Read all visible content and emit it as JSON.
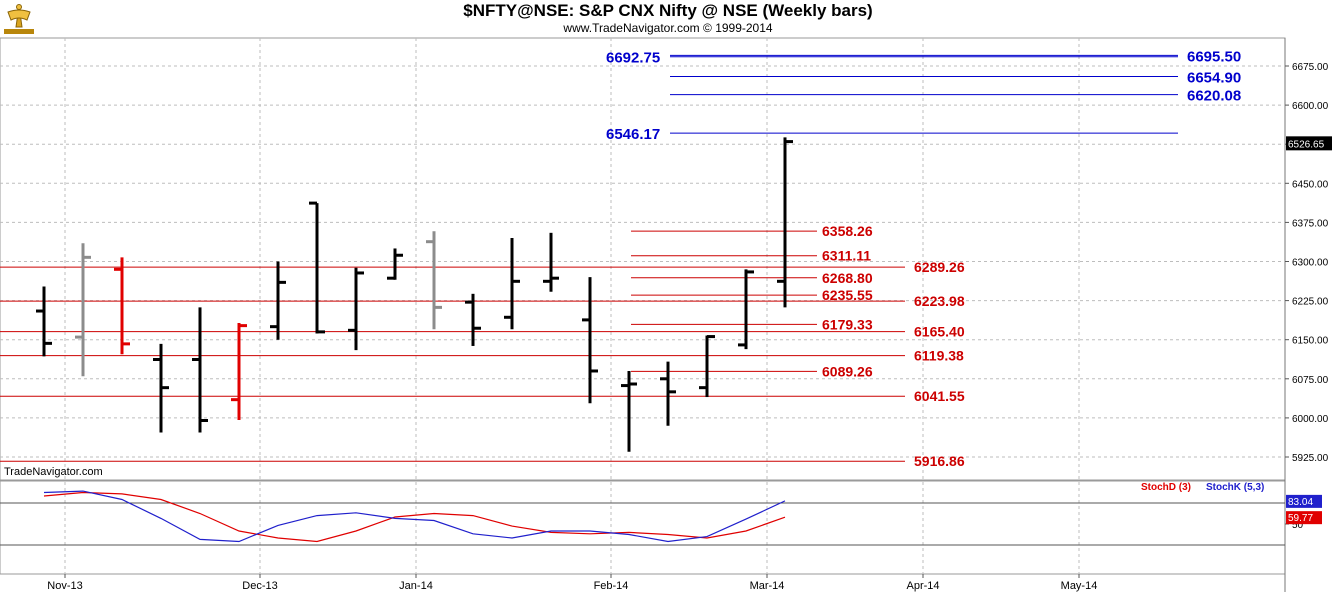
{
  "header": {
    "title": "$NFTY@NSE:  S&P CNX Nifty @ NSE  (Weekly bars)",
    "subtitle": "www.TradeNavigator.com © 1999-2014"
  },
  "watermark": "TradeNavigator.com",
  "colors": {
    "bar_default": "#000000",
    "bar_gray": "#8c8c8c",
    "bar_red": "#e00000",
    "bar_green": "#33dd33",
    "fib_red": "#cc0000",
    "fib_blue": "#0000cc",
    "stoch_d": "#e00000",
    "stoch_k": "#2020cc",
    "grid": "#bdbdbd"
  },
  "chart_data": [
    {
      "type": "ohlc",
      "title": "$NFTY@NSE:  S&P CNX Nifty @ NSE  (Weekly bars)",
      "y_axis": {
        "ticks": [
          5925,
          6000,
          6075,
          6150,
          6225,
          6300,
          6375,
          6450,
          6525,
          6600,
          6675
        ],
        "tick_labels": [
          "5925.00",
          "6000.00",
          "6075.00",
          "6150.00",
          "6225.00",
          "6300.00",
          "6375.00",
          "6450.00",
          "6525.00",
          "6600.00",
          "6675.00"
        ],
        "range": [
          5885,
          6710
        ]
      },
      "x_axis": {
        "labels": [
          "Nov-13",
          "Dec-13",
          "Jan-14",
          "Feb-14",
          "Mar-14",
          "Apr-14",
          "May-14"
        ],
        "label_week_index": [
          1,
          6,
          10,
          15,
          19,
          23,
          27
        ],
        "weeks_shown": 31
      },
      "last_price_label": "6526.65",
      "last_price": 6526.65,
      "bars": [
        {
          "week": 0,
          "o": 6205,
          "h": 6252,
          "l": 6118,
          "c": 6143,
          "color": "default"
        },
        {
          "week": 1,
          "o": 6155,
          "h": 6335,
          "l": 6080,
          "c": 6308,
          "color": "gray"
        },
        {
          "week": 2,
          "o": 6285,
          "h": 6308,
          "l": 6122,
          "c": 6142,
          "color": "red"
        },
        {
          "week": 3,
          "o": 6112,
          "h": 6142,
          "l": 5972,
          "c": 6058,
          "color": "default"
        },
        {
          "week": 4,
          "o": 6112,
          "h": 6212,
          "l": 5972,
          "c": 5995,
          "color": "default"
        },
        {
          "week": 5,
          "o": 6035,
          "h": 6182,
          "l": 5996,
          "c": 6177,
          "color": "red"
        },
        {
          "week": 6,
          "o": 6175,
          "h": 6300,
          "l": 6150,
          "c": 6260,
          "color": "default"
        },
        {
          "week": 7,
          "o": 6412,
          "h": 6412,
          "l": 6162,
          "c": 6165,
          "color": "default"
        },
        {
          "week": 8,
          "o": 6168,
          "h": 6288,
          "l": 6130,
          "c": 6278,
          "color": "default"
        },
        {
          "week": 9,
          "o": 6268,
          "h": 6325,
          "l": 6265,
          "c": 6312,
          "color": "default"
        },
        {
          "week": 10,
          "o": 6338,
          "h": 6358,
          "l": 6170,
          "c": 6212,
          "color": "gray"
        },
        {
          "week": 11,
          "o": 6222,
          "h": 6238,
          "l": 6138,
          "c": 6172,
          "color": "default"
        },
        {
          "week": 12,
          "o": 6193,
          "h": 6345,
          "l": 6170,
          "c": 6262,
          "color": "default"
        },
        {
          "week": 13,
          "o": 6262,
          "h": 6355,
          "l": 6242,
          "c": 6268,
          "color": "default"
        },
        {
          "week": 14,
          "o": 6188,
          "h": 6270,
          "l": 6028,
          "c": 6090,
          "color": "default"
        },
        {
          "week": 15,
          "o": 6062,
          "h": 6090,
          "l": 5935,
          "c": 6065,
          "color": "default"
        },
        {
          "week": 16,
          "o": 6075,
          "h": 6108,
          "l": 5985,
          "c": 6050,
          "color": "default"
        },
        {
          "week": 17,
          "o": 6058,
          "h": 6158,
          "l": 6040,
          "c": 6156,
          "color": "default"
        },
        {
          "week": 18,
          "o": 6140,
          "h": 6285,
          "l": 6132,
          "c": 6280,
          "color": "default"
        },
        {
          "week": 19,
          "o": 6262,
          "h": 6538,
          "l": 6212,
          "c": 6530,
          "color": "default"
        }
      ],
      "fib_levels_red": [
        {
          "value": 6358.26,
          "label": "6358.26",
          "span": "short"
        },
        {
          "value": 6311.11,
          "label": "6311.11",
          "span": "short"
        },
        {
          "value": 6289.26,
          "label": "6289.26",
          "span": "long"
        },
        {
          "value": 6268.8,
          "label": "6268.80",
          "span": "short"
        },
        {
          "value": 6235.55,
          "label": "6235.55",
          "span": "short"
        },
        {
          "value": 6223.98,
          "label": "6223.98",
          "span": "long"
        },
        {
          "value": 6179.33,
          "label": "6179.33",
          "span": "short"
        },
        {
          "value": 6165.4,
          "label": "6165.40",
          "span": "long"
        },
        {
          "value": 6119.38,
          "label": "6119.38",
          "span": "long"
        },
        {
          "value": 6089.26,
          "label": "6089.26",
          "span": "short"
        },
        {
          "value": 6041.55,
          "label": "6041.55",
          "span": "long"
        },
        {
          "value": 5916.86,
          "label": "5916.86",
          "span": "long"
        }
      ],
      "fib_levels_blue": [
        {
          "value": 6695.5,
          "label": "6695.50",
          "side": "right",
          "span": "long"
        },
        {
          "value": 6692.75,
          "label": "6692.75",
          "side": "left",
          "span": "long"
        },
        {
          "value": 6654.9,
          "label": "6654.90",
          "side": "right",
          "span": "short"
        },
        {
          "value": 6620.08,
          "label": "6620.08",
          "side": "right",
          "span": "short"
        },
        {
          "value": 6546.17,
          "label": "6546.17",
          "side": "left",
          "span": "long"
        }
      ]
    },
    {
      "type": "line",
      "indicator": "Stochastic",
      "series": [
        {
          "name": "StochD (3)",
          "color": "#e00000",
          "values": [
            90,
            95,
            93,
            85,
            65,
            40,
            30,
            25,
            40,
            60,
            65,
            62,
            47,
            38,
            36,
            38,
            35,
            30,
            40,
            59.77
          ]
        },
        {
          "name": "StochK (5,3)",
          "color": "#2020cc",
          "values": [
            95,
            97,
            85,
            58,
            28,
            25,
            48,
            62,
            66,
            58,
            55,
            36,
            30,
            40,
            40,
            35,
            25,
            32,
            57,
            83.04
          ]
        }
      ],
      "y_axis": {
        "ticks": [
          50
        ],
        "tick_labels": [
          "50"
        ],
        "range": [
          0,
          100
        ],
        "ref_lines": [
          20,
          80
        ]
      },
      "last_labels": {
        "stoch_k": "83.04",
        "stoch_d": "59.77"
      }
    }
  ]
}
